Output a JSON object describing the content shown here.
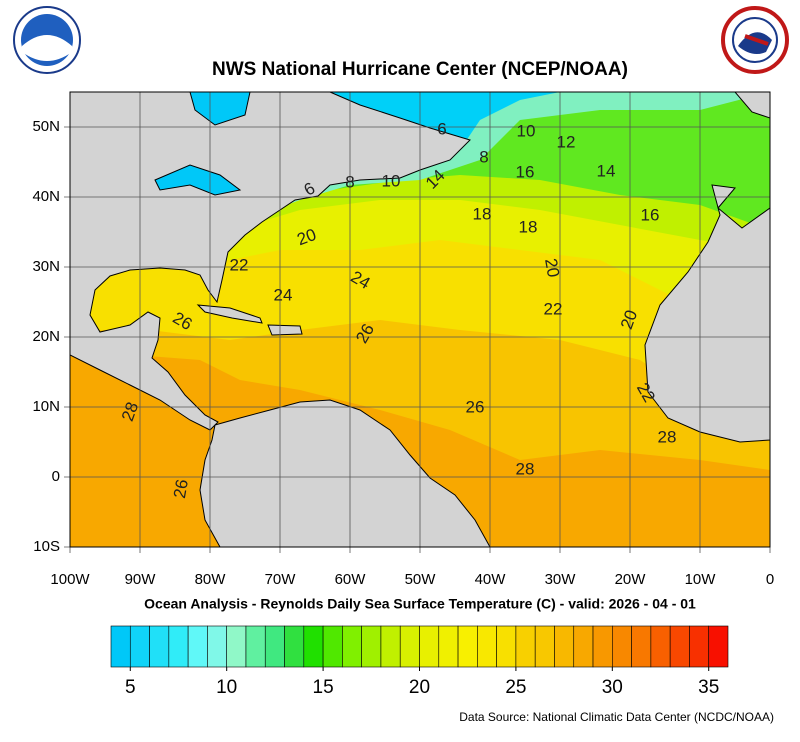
{
  "map": {
    "title": "NWS National Hurricane Center (NCEP/NOAA)",
    "subtitle": "Ocean Analysis - Reynolds Daily Sea Surface Temperature (C) - valid: 2026 - 04 - 01",
    "source": "Data Source: National Climatic Data Center (NCDC/NOAA)",
    "xlim": [
      -100,
      0
    ],
    "ylim": [
      -10,
      55
    ],
    "xticks": [
      {
        "value": -100,
        "label": "100W"
      },
      {
        "value": -90,
        "label": "90W"
      },
      {
        "value": -80,
        "label": "80W"
      },
      {
        "value": -70,
        "label": "70W"
      },
      {
        "value": -60,
        "label": "60W"
      },
      {
        "value": -50,
        "label": "50W"
      },
      {
        "value": -40,
        "label": "40W"
      },
      {
        "value": -30,
        "label": "30W"
      },
      {
        "value": -20,
        "label": "20W"
      },
      {
        "value": -10,
        "label": "10W"
      },
      0
    ],
    "yticks": [
      {
        "value": -10,
        "label": "10S"
      },
      0,
      {
        "value": 10,
        "label": "10N"
      },
      {
        "value": 20,
        "label": "20N"
      },
      {
        "value": 30,
        "label": "30N"
      },
      {
        "value": 40,
        "label": "40N"
      },
      {
        "value": 50,
        "label": "50N"
      }
    ],
    "contour_labels": [
      6,
      10,
      12,
      8,
      16,
      14,
      6,
      8,
      10,
      14,
      18,
      18,
      16,
      20,
      22,
      20,
      24,
      24,
      22,
      20,
      26,
      26,
      28,
      26,
      22,
      28,
      28,
      26
    ],
    "colorbar": {
      "lim": [
        4,
        36
      ],
      "ticks": [
        5,
        10,
        15,
        20,
        25,
        30,
        35
      ],
      "colors": [
        "#00c8f8",
        "#10d4f8",
        "#20e0f8",
        "#30ecf8",
        "#60f8f8",
        "#80f8e8",
        "#90f8c8",
        "#60f0a0",
        "#40e880",
        "#30e040",
        "#20e000",
        "#50e800",
        "#80f000",
        "#a0f000",
        "#c0f000",
        "#d8f000",
        "#e8f000",
        "#f0f000",
        "#f8f000",
        "#f8e800",
        "#f8e000",
        "#f8d000",
        "#f8c800",
        "#f8b800",
        "#f8a800",
        "#f89800",
        "#f88800",
        "#f87800",
        "#f86000",
        "#f84800",
        "#f83000",
        "#f81000"
      ]
    }
  }
}
